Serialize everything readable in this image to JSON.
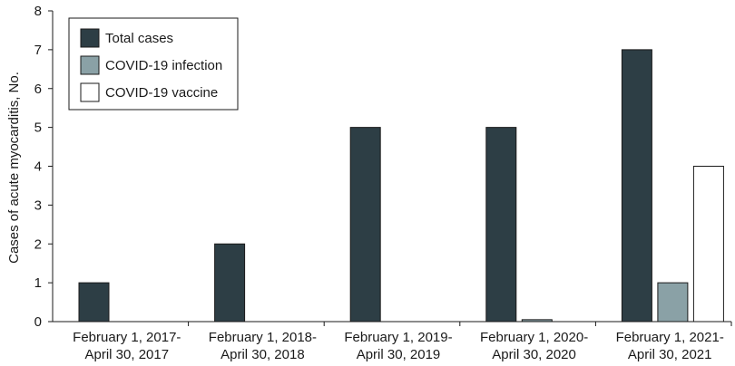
{
  "chart_data": {
    "type": "bar",
    "title": "",
    "xlabel": "",
    "ylabel": "Cases of acute myocarditis, No.",
    "ylim": [
      0,
      8
    ],
    "yticks": [
      0,
      1,
      2,
      3,
      4,
      5,
      6,
      7,
      8
    ],
    "grid": false,
    "legend_position": "top-left",
    "categories": [
      [
        "February 1, 2017-",
        "April 30, 2017"
      ],
      [
        "February 1, 2018-",
        "April 30, 2018"
      ],
      [
        "February 1, 2019-",
        "April 30, 2019"
      ],
      [
        "February 1, 2020-",
        "April 30, 2020"
      ],
      [
        "February 1, 2021-",
        "April 30, 2021"
      ]
    ],
    "series": [
      {
        "name": "Total cases",
        "color": "#2d3e45",
        "values": [
          1,
          2,
          5,
          5,
          7
        ]
      },
      {
        "name": "COVID-19 infection",
        "color": "#8aa1a6",
        "values": [
          0,
          0,
          0,
          0.05,
          1
        ]
      },
      {
        "name": "COVID-19 vaccine",
        "color": "#ffffff",
        "values": [
          0,
          0,
          0,
          0,
          4
        ]
      }
    ]
  }
}
